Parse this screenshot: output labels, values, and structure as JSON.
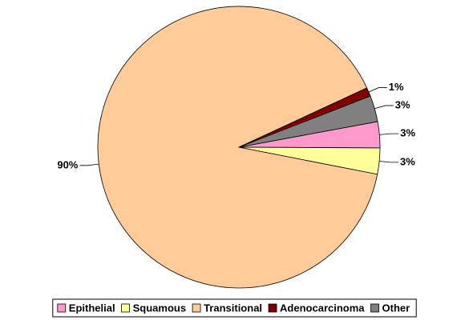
{
  "chart_data": {
    "type": "pie",
    "categories": [
      "Epithelial",
      "Squamous",
      "Transitional",
      "Adenocarcinoma",
      "Other"
    ],
    "values": [
      3,
      3,
      90,
      1,
      3
    ],
    "value_labels": [
      "3%",
      "3%",
      "90%",
      "1%",
      "3%"
    ],
    "colors": [
      "#ff99cc",
      "#ffff99",
      "#ffcc99",
      "#800000",
      "#808080"
    ],
    "legend": "bottom"
  }
}
